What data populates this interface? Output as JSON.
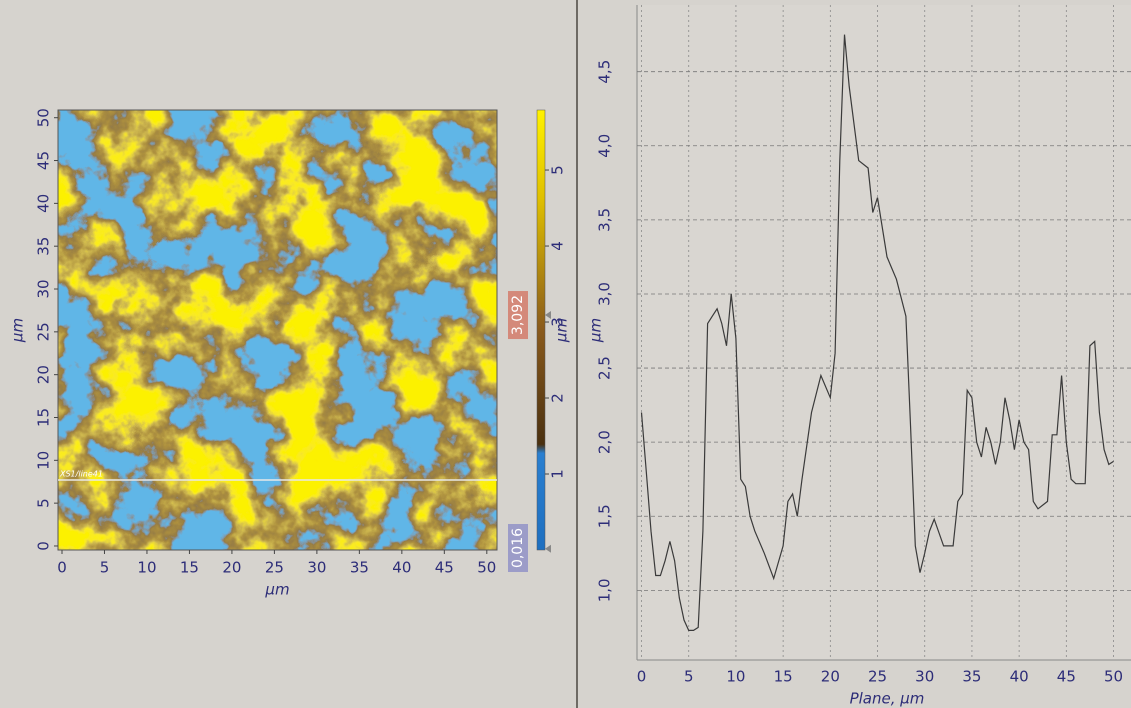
{
  "chart_data": [
    {
      "type": "heatmap",
      "xlabel": "μm",
      "ylabel": "μm",
      "xlim": [
        -0.47,
        51.2
      ],
      "ylim": [
        -0.47,
        50.9
      ],
      "xticks": [
        0,
        5,
        10,
        15,
        20,
        25,
        30,
        35,
        40,
        45,
        50
      ],
      "yticks": [
        0,
        5,
        10,
        15,
        20,
        25,
        30,
        35,
        40,
        45,
        50
      ],
      "profile_label": "XS1/line41",
      "colorbar": {
        "label": "μm",
        "lim": [
          0,
          5.79
        ],
        "ticks": [
          1,
          2,
          3,
          4,
          5
        ],
        "markers": [
          {
            "value": 3.092,
            "label": "3,092",
            "color": "#d4897a"
          },
          {
            "value": 0.016,
            "label": "0,016",
            "color": "#9c9cc8"
          }
        ]
      }
    },
    {
      "type": "line",
      "xlabel": "Plane, μm",
      "ylabel": "μm",
      "color": "#3a3a3a",
      "grid": true,
      "xlim": [
        -0.48,
        51.85
      ],
      "ylim": [
        0.53,
        4.95
      ],
      "xticks": [
        0,
        5,
        10,
        15,
        20,
        25,
        30,
        35,
        40,
        45,
        50
      ],
      "yticks": [
        {
          "value": 1.0,
          "label": "1,0"
        },
        {
          "value": 1.5,
          "label": "1,5"
        },
        {
          "value": 2.0,
          "label": "2,0"
        },
        {
          "value": 2.5,
          "label": "2,5"
        },
        {
          "value": 3.0,
          "label": "3,0"
        },
        {
          "value": 3.5,
          "label": "3,5"
        },
        {
          "value": 4.0,
          "label": "4,0"
        },
        {
          "value": 4.5,
          "label": "4,5"
        }
      ],
      "x": [
        0,
        0.5,
        1,
        1.5,
        2,
        2.5,
        3,
        3.5,
        4,
        4.5,
        5,
        5.5,
        6,
        6.5,
        7,
        7.5,
        8,
        8.5,
        9,
        9.5,
        10,
        10.5,
        11,
        11.5,
        12,
        13,
        14,
        15,
        15.5,
        16,
        16.5,
        17,
        18,
        19,
        20,
        20.5,
        21,
        21.5,
        22,
        23,
        24,
        24.5,
        25,
        26,
        27,
        28,
        28.5,
        29,
        29.5,
        30,
        30.5,
        31,
        32,
        33,
        33.5,
        34,
        34.5,
        35,
        35.5,
        36,
        36.5,
        37,
        37.5,
        38,
        38.5,
        39,
        39.5,
        40,
        40.5,
        41,
        41.5,
        42,
        43,
        43.5,
        44,
        44.5,
        45,
        45.5,
        46,
        47,
        47.5,
        48,
        48.5,
        49,
        49.5,
        50
      ],
      "values": [
        2.2,
        1.8,
        1.4,
        1.1,
        1.1,
        1.2,
        1.33,
        1.2,
        0.95,
        0.8,
        0.73,
        0.73,
        0.75,
        1.4,
        2.8,
        2.85,
        2.9,
        2.8,
        2.65,
        3.0,
        2.7,
        1.75,
        1.7,
        1.5,
        1.4,
        1.25,
        1.08,
        1.3,
        1.6,
        1.65,
        1.5,
        1.75,
        2.2,
        2.45,
        2.3,
        2.6,
        3.9,
        4.75,
        4.4,
        3.9,
        3.85,
        3.55,
        3.65,
        3.25,
        3.1,
        2.85,
        2.1,
        1.3,
        1.12,
        1.25,
        1.4,
        1.48,
        1.3,
        1.3,
        1.6,
        1.65,
        2.35,
        2.3,
        2.0,
        1.9,
        2.1,
        2.0,
        1.85,
        2.0,
        2.3,
        2.15,
        1.95,
        2.15,
        2.0,
        1.95,
        1.6,
        1.55,
        1.6,
        2.05,
        2.05,
        2.45,
        2.0,
        1.75,
        1.72,
        1.72,
        2.65,
        2.68,
        2.2,
        1.95,
        1.85,
        1.87
      ]
    }
  ]
}
